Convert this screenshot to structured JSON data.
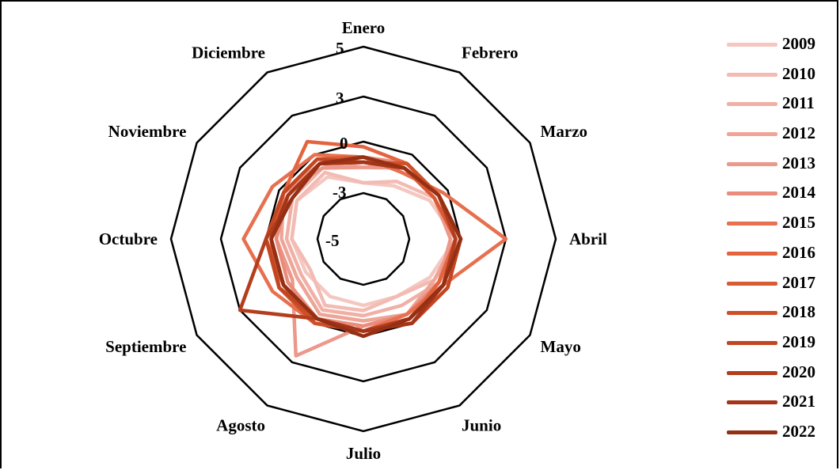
{
  "chart_data": {
    "type": "radar",
    "categories": [
      "Enero",
      "Febrero",
      "Marzo",
      "Abril",
      "Mayo",
      "Junio",
      "Julio",
      "Agosto",
      "Septiembre",
      "Octubre",
      "Noviembre",
      "Diciembre"
    ],
    "ticks": [
      "5",
      "3",
      "0",
      "-3",
      "-5"
    ],
    "grid_values": [
      -5,
      0,
      3,
      5
    ],
    "rlim": [
      -5,
      5
    ],
    "legend_position": "right",
    "grid": true,
    "series": [
      {
        "name": "2009",
        "color": "#f4c7c1",
        "values": [
          -4.0,
          -3.5,
          -2.0,
          -0.5,
          -2.0,
          -3.0,
          -3.0,
          -3.0,
          -3.0,
          -2.5,
          -2.0,
          -2.5
        ]
      },
      {
        "name": "2010",
        "color": "#f2bbb3",
        "values": [
          -4.0,
          -3.0,
          -1.5,
          -0.5,
          -1.5,
          -3.0,
          -2.5,
          -2.0,
          -3.5,
          -2.5,
          -2.0,
          -2.0
        ]
      },
      {
        "name": "2011",
        "color": "#f0b0a6",
        "values": [
          -2.0,
          -1.5,
          -1.0,
          0.0,
          -1.0,
          -2.0,
          -2.0,
          -1.5,
          -2.5,
          -2.0,
          -1.5,
          -1.5
        ]
      },
      {
        "name": "2012",
        "color": "#eea597",
        "values": [
          -2.5,
          -1.0,
          -1.0,
          -0.5,
          -1.5,
          -1.0,
          -1.5,
          -1.0,
          -2.0,
          -1.5,
          -0.5,
          -1.0
        ]
      },
      {
        "name": "2013",
        "color": "#ec988a",
        "values": [
          -2.5,
          -1.5,
          -1.5,
          -1.0,
          -1.0,
          -1.0,
          -1.0,
          2.5,
          -1.5,
          -1.0,
          -0.5,
          -1.5
        ]
      },
      {
        "name": "2014",
        "color": "#e98c7b",
        "values": [
          -1.5,
          -1.0,
          -1.0,
          0.0,
          -1.0,
          -1.0,
          -1.0,
          -0.5,
          -1.0,
          -1.0,
          -1.0,
          -1.0
        ]
      },
      {
        "name": "2015",
        "color": "#e6704f",
        "values": [
          -1.5,
          -2.0,
          -0.5,
          3.0,
          -0.5,
          -1.0,
          -0.5,
          0.0,
          0.5,
          1.5,
          0.5,
          0.0
        ]
      },
      {
        "name": "2016",
        "color": "#e3643f",
        "values": [
          -0.5,
          -1.0,
          -1.0,
          -0.5,
          -1.0,
          -0.5,
          -0.5,
          0.0,
          -0.5,
          0.0,
          -0.5,
          1.0
        ]
      },
      {
        "name": "2017",
        "color": "#d95a33",
        "values": [
          -1.5,
          -1.5,
          -1.5,
          -0.5,
          -0.5,
          -0.5,
          -0.5,
          0.0,
          -0.5,
          -0.5,
          -0.5,
          -0.5
        ]
      },
      {
        "name": "2018",
        "color": "#ce5029",
        "values": [
          -2.0,
          -1.0,
          -1.0,
          -0.5,
          -0.5,
          0.0,
          -0.5,
          0.0,
          0.0,
          -0.5,
          -1.0,
          -1.0
        ]
      },
      {
        "name": "2019",
        "color": "#c24622",
        "values": [
          -2.0,
          -1.5,
          -1.0,
          0.0,
          0.0,
          0.0,
          -0.5,
          -0.5,
          0.0,
          0.0,
          -0.5,
          -0.5
        ]
      },
      {
        "name": "2020",
        "color": "#b33d1c",
        "values": [
          -2.0,
          -1.5,
          -1.0,
          -0.5,
          -0.5,
          -0.5,
          -0.5,
          -0.5,
          3.0,
          0.0,
          -1.5,
          -1.0
        ]
      },
      {
        "name": "2021",
        "color": "#a43518",
        "values": [
          -2.0,
          -1.5,
          -1.0,
          0.0,
          -0.5,
          0.0,
          -0.5,
          -0.5,
          -0.5,
          -0.5,
          -1.0,
          -1.0
        ]
      },
      {
        "name": "2022",
        "color": "#953015",
        "values": [
          -1.5,
          -1.5,
          -1.0,
          0.0,
          -0.5,
          -0.5,
          0.0,
          -0.5,
          -0.5,
          -0.5,
          -1.5,
          -1.0
        ]
      }
    ]
  }
}
